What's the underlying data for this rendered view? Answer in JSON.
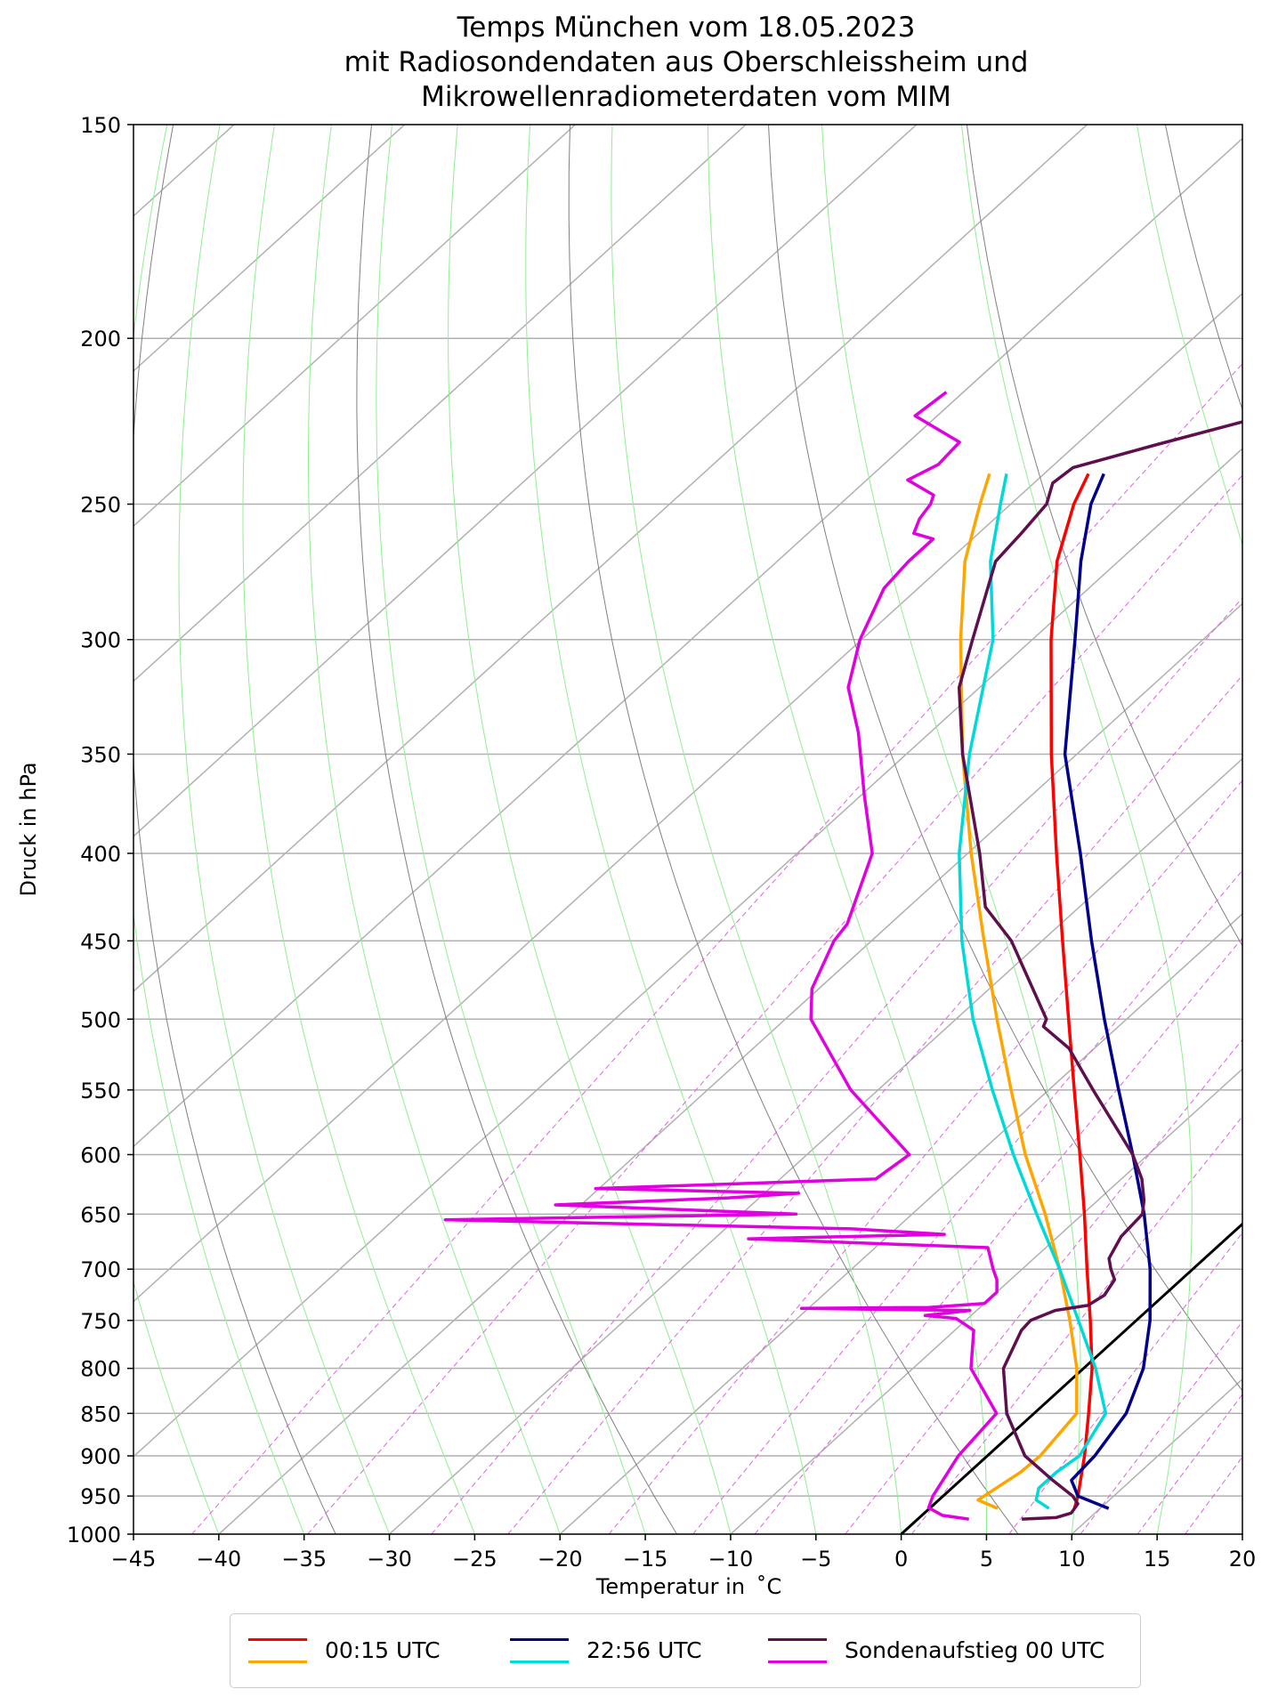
{
  "title_lines": [
    "Temps München vom 18.05.2023",
    "mit Radiosondendaten aus Oberschleissheim und",
    "Mikrowellenradiometerdaten vom MIM"
  ],
  "colors": {
    "radiometer_0015_temp": "#ff0000",
    "radiometer_0015_dew": "#ffa500",
    "radiometer_2256_temp": "#00008b",
    "radiometer_2256_dew": "#00d9d9",
    "sonde_temp": "#5e0f4e",
    "sonde_dew": "#e000e0",
    "isotherm_0": "#000000",
    "dry_adiabat": "#808080",
    "moist_adiabat": "#90ee90",
    "mixing_ratio": "#e060e0",
    "grid": "#b0b0b0"
  },
  "legend": [
    {
      "label": "00:15 UTC",
      "colors": [
        "#ff0000",
        "#ffa500"
      ]
    },
    {
      "label": "22:56 UTC",
      "colors": [
        "#00008b",
        "#00d9d9"
      ]
    },
    {
      "label": "Sondenaufstieg 00 UTC",
      "colors": [
        "#5e0f4e",
        "#e000e0"
      ]
    }
  ],
  "chart_data": {
    "type": "line",
    "subtype": "skew-T log-P diagram",
    "title": "Temps München vom 18.05.2023 mit Radiosondendaten aus Oberschleissheim und Mikrowellenradiometerdaten vom MIM",
    "xlabel": "Temperatur in  ˚C",
    "ylabel": "Druck in hPa",
    "xlim": [
      -45,
      20
    ],
    "ylim": [
      1000,
      150
    ],
    "y_scale": "log",
    "x_ticks": [
      "−45",
      "−40",
      "−35",
      "−30",
      "−25",
      "−20",
      "−15",
      "−10",
      "−5",
      "0",
      "5",
      "10",
      "15",
      "20"
    ],
    "x_tick_values": [
      -45,
      -40,
      -35,
      -30,
      -25,
      -20,
      -15,
      -10,
      -5,
      0,
      5,
      10,
      15,
      20
    ],
    "y_ticks": [
      "150",
      "200",
      "250",
      "300",
      "350",
      "400",
      "450",
      "500",
      "550",
      "600",
      "650",
      "700",
      "750",
      "800",
      "850",
      "900",
      "950",
      "1000"
    ],
    "y_tick_values": [
      150,
      200,
      250,
      300,
      350,
      400,
      450,
      500,
      550,
      600,
      650,
      700,
      750,
      800,
      850,
      900,
      950,
      1000
    ],
    "grid": true,
    "legend_position": "below plot",
    "series": [
      {
        "name": "00:15 UTC",
        "kind": "temperature",
        "color": "#ff0000",
        "points": [
          [
            966,
            8.5
          ],
          [
            950,
            7.9
          ],
          [
            900,
            5.7
          ],
          [
            850,
            3.2
          ],
          [
            800,
            0.5
          ],
          [
            750,
            -2.7
          ],
          [
            700,
            -6.2
          ],
          [
            650,
            -9.9
          ],
          [
            600,
            -14.0
          ],
          [
            550,
            -18.5
          ],
          [
            500,
            -23.4
          ],
          [
            450,
            -28.8
          ],
          [
            400,
            -34.8
          ],
          [
            350,
            -41.5
          ],
          [
            300,
            -48.9
          ],
          [
            270,
            -53.6
          ],
          [
            250,
            -56.3
          ],
          [
            240,
            -57.4
          ]
        ]
      },
      {
        "name": "00:15 UTC",
        "kind": "dewpoint",
        "color": "#ffa500",
        "points": [
          [
            966,
            4.0
          ],
          [
            955,
            2.3
          ],
          [
            940,
            2.6
          ],
          [
            920,
            3.0
          ],
          [
            900,
            3.1
          ],
          [
            850,
            2.5
          ],
          [
            800,
            -0.4
          ],
          [
            750,
            -3.9
          ],
          [
            700,
            -7.8
          ],
          [
            650,
            -12.2
          ],
          [
            600,
            -17.2
          ],
          [
            550,
            -22.2
          ],
          [
            500,
            -27.6
          ],
          [
            450,
            -33.4
          ],
          [
            400,
            -39.8
          ],
          [
            350,
            -46.7
          ],
          [
            300,
            -54.2
          ],
          [
            270,
            -59.0
          ],
          [
            250,
            -61.8
          ],
          [
            240,
            -63.2
          ]
        ]
      },
      {
        "name": "22:56 UTC",
        "kind": "temperature",
        "color": "#00008b",
        "points": [
          [
            966,
            10.5
          ],
          [
            950,
            7.9
          ],
          [
            930,
            6.5
          ],
          [
            900,
            6.3
          ],
          [
            850,
            5.4
          ],
          [
            800,
            3.5
          ],
          [
            750,
            0.8
          ],
          [
            700,
            -2.5
          ],
          [
            650,
            -6.4
          ],
          [
            600,
            -10.9
          ],
          [
            550,
            -15.9
          ],
          [
            500,
            -21.3
          ],
          [
            450,
            -27.1
          ],
          [
            400,
            -33.4
          ],
          [
            350,
            -40.7
          ],
          [
            300,
            -47.5
          ],
          [
            270,
            -52.2
          ],
          [
            250,
            -55.3
          ],
          [
            240,
            -56.5
          ]
        ]
      },
      {
        "name": "22:56 UTC",
        "kind": "dewpoint",
        "color": "#00d9d9",
        "points": [
          [
            966,
            7.0
          ],
          [
            955,
            5.7
          ],
          [
            940,
            5.1
          ],
          [
            920,
            5.1
          ],
          [
            900,
            5.4
          ],
          [
            850,
            4.2
          ],
          [
            800,
            0.7
          ],
          [
            750,
            -3.4
          ],
          [
            700,
            -7.8
          ],
          [
            650,
            -12.7
          ],
          [
            600,
            -17.9
          ],
          [
            550,
            -23.3
          ],
          [
            500,
            -29.0
          ],
          [
            450,
            -34.7
          ],
          [
            400,
            -40.5
          ],
          [
            350,
            -46.3
          ],
          [
            300,
            -52.3
          ],
          [
            270,
            -57.5
          ],
          [
            250,
            -60.6
          ],
          [
            240,
            -62.2
          ]
        ]
      },
      {
        "name": "Sondenaufstieg 00 UTC",
        "kind": "temperature",
        "color": "#5e0f4e",
        "points": [
          [
            980,
            6.1
          ],
          [
            978,
            8.0
          ],
          [
            972,
            8.6
          ],
          [
            960,
            8.4
          ],
          [
            950,
            7.6
          ],
          [
            930,
            5.4
          ],
          [
            900,
            2.2
          ],
          [
            850,
            -1.6
          ],
          [
            800,
            -4.7
          ],
          [
            760,
            -6.1
          ],
          [
            750,
            -6.2
          ],
          [
            740,
            -5.4
          ],
          [
            735,
            -3.8
          ],
          [
            725,
            -3.5
          ],
          [
            710,
            -3.9
          ],
          [
            700,
            -4.8
          ],
          [
            690,
            -5.6
          ],
          [
            670,
            -6.3
          ],
          [
            650,
            -6.5
          ],
          [
            638,
            -7.3
          ],
          [
            620,
            -8.8
          ],
          [
            600,
            -10.9
          ],
          [
            550,
            -17.4
          ],
          [
            520,
            -21.5
          ],
          [
            505,
            -24.4
          ],
          [
            500,
            -24.7
          ],
          [
            450,
            -31.8
          ],
          [
            430,
            -35.5
          ],
          [
            400,
            -39.3
          ],
          [
            350,
            -46.7
          ],
          [
            320,
            -51.2
          ],
          [
            300,
            -53.5
          ],
          [
            270,
            -57.2
          ],
          [
            260,
            -57.5
          ],
          [
            250,
            -57.9
          ],
          [
            243,
            -58.9
          ],
          [
            238,
            -58.7
          ],
          [
            231,
            -55.4
          ],
          [
            219,
            -49.2
          ],
          [
            200,
            -44.6
          ],
          [
            193,
            -42.3
          ],
          [
            183,
            -42.4
          ],
          [
            170,
            -42.4
          ],
          [
            150,
            -42.0
          ]
        ]
      },
      {
        "name": "Sondenaufstieg 00 UTC",
        "kind": "dewpoint",
        "color": "#e000e0",
        "points": [
          [
            980,
            3.0
          ],
          [
            975,
            1.2
          ],
          [
            965,
            -0.1
          ],
          [
            950,
            -0.6
          ],
          [
            900,
            -1.7
          ],
          [
            850,
            -2.2
          ],
          [
            800,
            -6.6
          ],
          [
            760,
            -8.9
          ],
          [
            748,
            -10.7
          ],
          [
            745,
            -12.7
          ],
          [
            740,
            -10.4
          ],
          [
            738,
            -20.4
          ],
          [
            737,
            -13.0
          ],
          [
            733,
            -10.0
          ],
          [
            722,
            -10.0
          ],
          [
            710,
            -10.8
          ],
          [
            700,
            -11.7
          ],
          [
            680,
            -13.4
          ],
          [
            672,
            -28.0
          ],
          [
            668,
            -16.8
          ],
          [
            663,
            -22.6
          ],
          [
            655,
            -47.0
          ],
          [
            650,
            -26.8
          ],
          [
            642,
            -41.5
          ],
          [
            636,
            -31.8
          ],
          [
            632,
            -28.0
          ],
          [
            628,
            -40.2
          ],
          [
            620,
            -24.4
          ],
          [
            600,
            -24.0
          ],
          [
            550,
            -31.6
          ],
          [
            500,
            -38.5
          ],
          [
            480,
            -40.4
          ],
          [
            450,
            -42.2
          ],
          [
            440,
            -42.5
          ],
          [
            400,
            -45.6
          ],
          [
            370,
            -49.8
          ],
          [
            340,
            -54.2
          ],
          [
            320,
            -57.7
          ],
          [
            300,
            -60.1
          ],
          [
            280,
            -62.0
          ],
          [
            270,
            -62.3
          ],
          [
            262,
            -62.3
          ],
          [
            260,
            -63.8
          ],
          [
            255,
            -64.4
          ],
          [
            250,
            -64.7
          ],
          [
            247,
            -65.1
          ],
          [
            242,
            -67.6
          ],
          [
            237,
            -66.8
          ],
          [
            230,
            -67.0
          ],
          [
            222,
            -71.3
          ],
          [
            215,
            -71.0
          ]
        ]
      }
    ],
    "reference_lines": {
      "isotherm_0C": "black line from 0 °C at 1000 hPa",
      "dry_adiabats": "grey lines",
      "moist_adiabats": "light green lines",
      "mixing_ratio_lines": "magenta dashed lines"
    }
  }
}
